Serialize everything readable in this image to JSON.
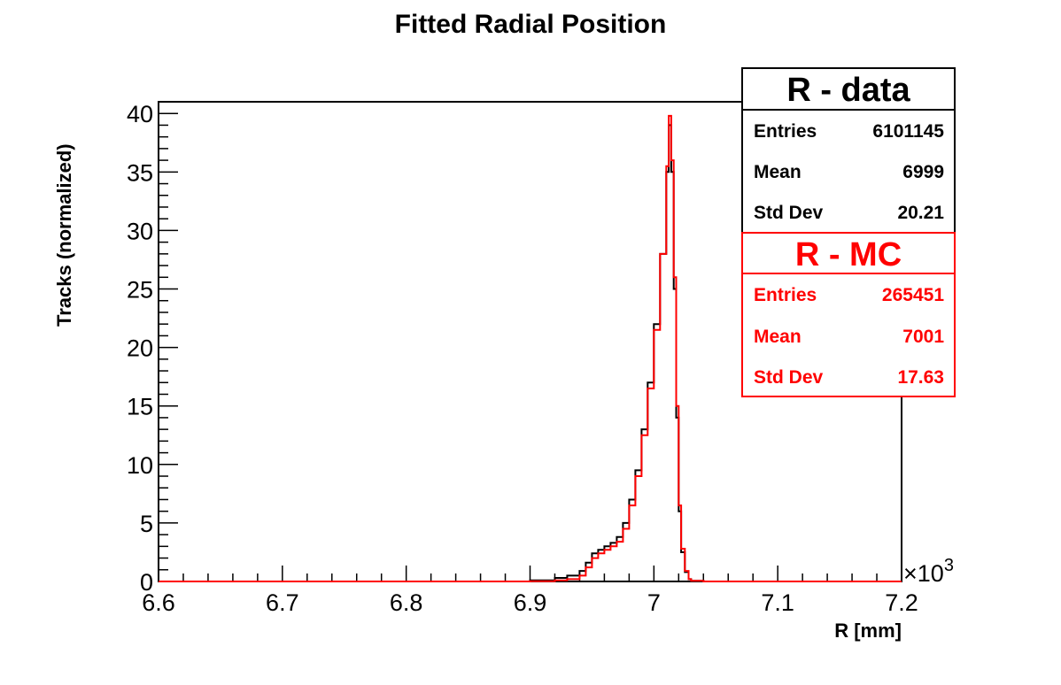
{
  "chart_data": {
    "type": "line",
    "title": "Fitted Radial Position",
    "xlabel": "R [mm]",
    "ylabel": "Tracks (normalized)",
    "x_multiplier": "×10",
    "x_multiplier_exp": "3",
    "xlim": [
      6.6,
      7.2
    ],
    "ylim": [
      0,
      41
    ],
    "x_ticks": [
      "6.6",
      "6.7",
      "6.8",
      "6.9",
      "7",
      "7.1",
      "7.2"
    ],
    "y_ticks": [
      "0",
      "5",
      "10",
      "15",
      "20",
      "25",
      "30",
      "35",
      "40"
    ],
    "series": [
      {
        "name": "R - data",
        "color": "#000000",
        "x": [
          6.6,
          6.9,
          6.92,
          6.93,
          6.94,
          6.945,
          6.95,
          6.955,
          6.96,
          6.965,
          6.97,
          6.975,
          6.98,
          6.985,
          6.99,
          6.995,
          7.0,
          7.005,
          7.01,
          7.012,
          7.014,
          7.016,
          7.018,
          7.02,
          7.022,
          7.025,
          7.028,
          7.03,
          7.04,
          7.2
        ],
        "y": [
          0,
          0.1,
          0.3,
          0.5,
          0.9,
          1.6,
          2.4,
          2.7,
          3.0,
          3.3,
          3.8,
          5.0,
          7.0,
          9.5,
          13.0,
          17.0,
          22.0,
          28.0,
          35.0,
          39.0,
          35.0,
          25.0,
          14.0,
          6.0,
          2.5,
          0.8,
          0.2,
          0.05,
          0,
          0
        ]
      },
      {
        "name": "R - MC",
        "color": "#ff0000",
        "x": [
          6.6,
          6.9,
          6.92,
          6.93,
          6.94,
          6.945,
          6.95,
          6.955,
          6.96,
          6.965,
          6.97,
          6.975,
          6.98,
          6.985,
          6.99,
          6.995,
          7.0,
          7.005,
          7.01,
          7.012,
          7.014,
          7.016,
          7.018,
          7.02,
          7.022,
          7.025,
          7.028,
          7.03,
          7.04,
          7.2
        ],
        "y": [
          0,
          0.02,
          0.1,
          0.2,
          0.5,
          1.2,
          2.0,
          2.4,
          2.7,
          3.0,
          3.4,
          4.5,
          6.5,
          9.0,
          12.5,
          16.5,
          21.5,
          28.0,
          35.5,
          39.8,
          36.0,
          26.0,
          15.0,
          6.5,
          2.8,
          0.9,
          0.2,
          0.05,
          0,
          0
        ]
      }
    ]
  },
  "stats": [
    {
      "title": "R - data",
      "color": "#000000",
      "rows": [
        {
          "label": "Entries",
          "value": "6101145"
        },
        {
          "label": "Mean",
          "value": "6999"
        },
        {
          "label": "Std Dev",
          "value": "20.21"
        }
      ]
    },
    {
      "title": "R - MC",
      "color": "#ff0000",
      "rows": [
        {
          "label": "Entries",
          "value": "265451"
        },
        {
          "label": "Mean",
          "value": "7001"
        },
        {
          "label": "Std Dev",
          "value": "17.63"
        }
      ]
    }
  ]
}
